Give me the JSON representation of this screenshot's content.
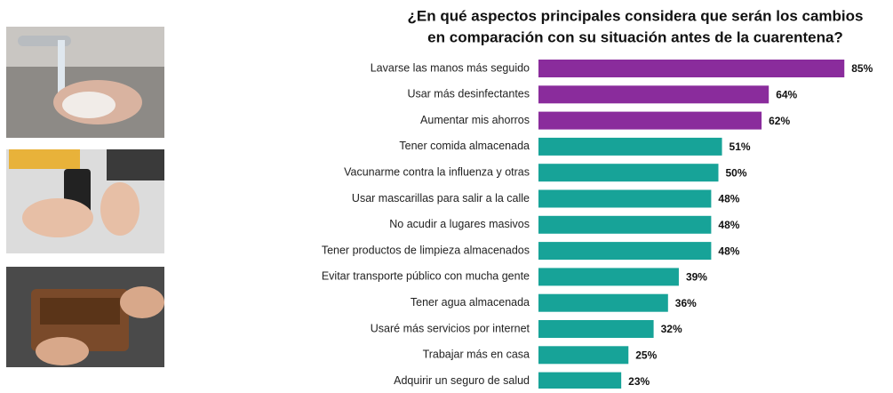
{
  "chart_data": {
    "type": "bar",
    "orientation": "horizontal",
    "title": [
      "¿En qué aspectos principales considera que serán los cambios",
      "en comparación con su situación antes de la cuarentena?"
    ],
    "categories": [
      "Lavarse las manos más seguido",
      "Usar más desinfectantes",
      "Aumentar mis ahorros",
      "Tener comida almacenada",
      "Vacunarme contra la influenza y otras",
      "Usar mascarillas para salir a la calle",
      "No acudir a lugares masivos",
      "Tener productos de limpieza almacenados",
      "Evitar transporte público con mucha gente",
      "Tener agua almacenada",
      "Usaré más servicios por internet",
      "Trabajar más en casa",
      "Adquirir un seguro de salud"
    ],
    "values": [
      85,
      64,
      62,
      51,
      50,
      48,
      48,
      48,
      39,
      36,
      32,
      25,
      23
    ],
    "value_labels": [
      "85%",
      "64%",
      "62%",
      "51%",
      "50%",
      "48%",
      "48%",
      "48%",
      "39%",
      "36%",
      "32%",
      "25%",
      "23%"
    ],
    "colors": [
      "#8a2c9c",
      "#8a2c9c",
      "#8a2c9c",
      "#17a398",
      "#17a398",
      "#17a398",
      "#17a398",
      "#17a398",
      "#17a398",
      "#17a398",
      "#17a398",
      "#17a398",
      "#17a398"
    ]
  }
}
